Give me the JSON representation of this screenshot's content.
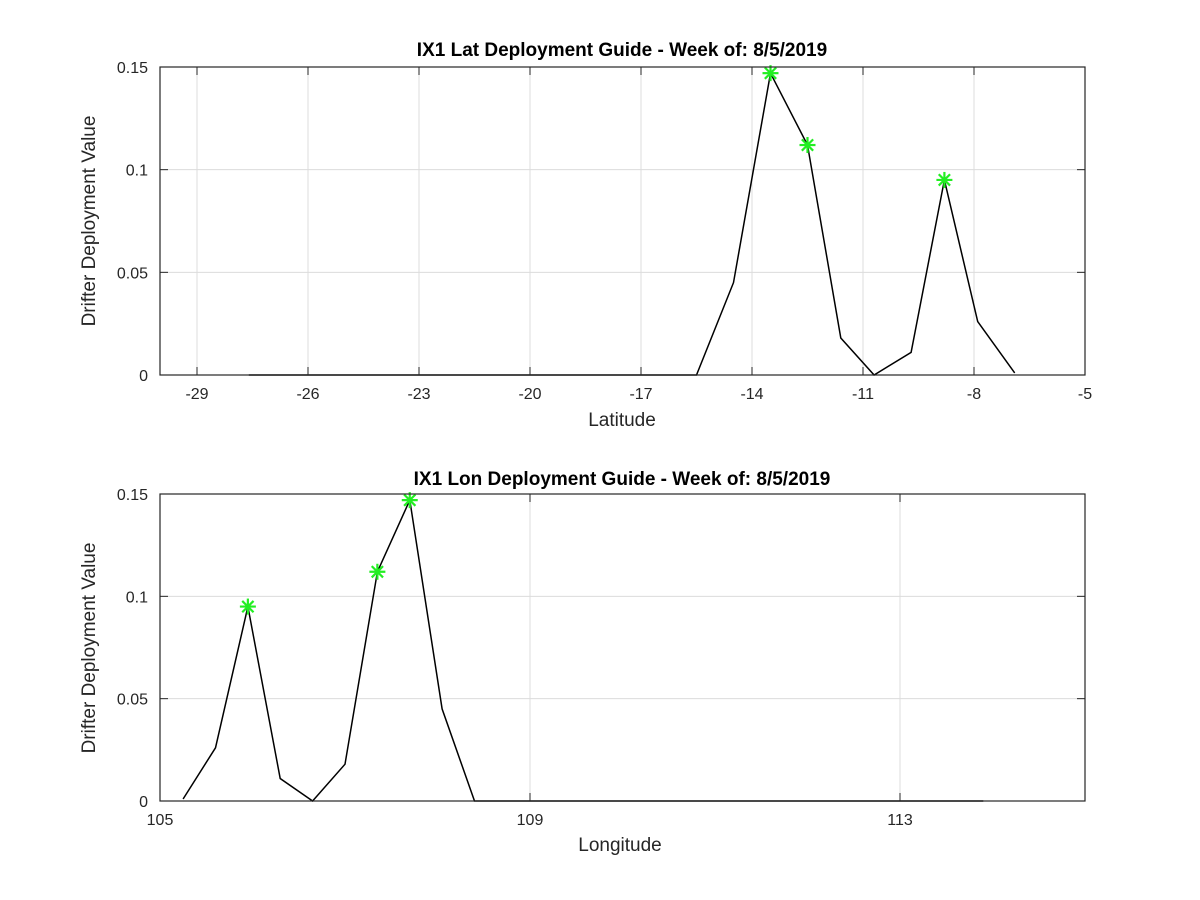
{
  "chart_data": [
    {
      "type": "line",
      "title": "IX1 Lat Deployment Guide - Week of: 8/5/2019",
      "xlabel": "Latitude",
      "ylabel": "Drifter Deployment Value",
      "xlim": [
        -30,
        -5
      ],
      "ylim": [
        0,
        0.15
      ],
      "xticks": [
        -29,
        -26,
        -23,
        -20,
        -17,
        -14,
        -11,
        -8,
        -5
      ],
      "xtick_labels": [
        "-29",
        "-26",
        "-23",
        "-20",
        "-17",
        "-14",
        "-11",
        "-8",
        "-5"
      ],
      "yticks": [
        0,
        0.05,
        0.1,
        0.15
      ],
      "ytick_labels": [
        "0",
        "0.05",
        "0.1",
        "0.15"
      ],
      "grid": true,
      "series": [
        {
          "color": "#000000",
          "x": [
            -27.6,
            -26.6,
            -25.6,
            -24.6,
            -23.6,
            -22.6,
            -21.6,
            -20.6,
            -19.6,
            -18.6,
            -17.6,
            -16.6,
            -15.5,
            -14.5,
            -13.5,
            -12.5,
            -11.6,
            -10.7,
            -9.7,
            -8.8,
            -7.9,
            -6.9
          ],
          "y": [
            0,
            0,
            0,
            0,
            0,
            0,
            0,
            0,
            0,
            0,
            0,
            0,
            0,
            0.045,
            0.147,
            0.112,
            0.018,
            0,
            0.011,
            0.095,
            0.026,
            0.001
          ]
        }
      ],
      "markers": {
        "color": "#22ee22",
        "symbol": "asterisk",
        "x": [
          -13.5,
          -12.5,
          -8.8
        ],
        "y": [
          0.147,
          0.112,
          0.095
        ]
      }
    },
    {
      "type": "line",
      "title": "IX1 Lon Deployment Guide - Week of: 8/5/2019",
      "xlabel": "Longitude",
      "ylabel": "Drifter Deployment Value",
      "xlim": [
        105,
        115
      ],
      "ylim": [
        0,
        0.15
      ],
      "xticks": [
        105,
        109,
        113
      ],
      "xtick_labels": [
        "105",
        "109",
        "113"
      ],
      "yticks": [
        0,
        0.05,
        0.1,
        0.15
      ],
      "ytick_labels": [
        "0",
        "0.05",
        "0.1",
        "0.15"
      ],
      "grid": true,
      "series": [
        {
          "color": "#000000",
          "x": [
            105.25,
            105.6,
            105.95,
            106.3,
            106.65,
            107.0,
            107.35,
            107.7,
            108.05,
            108.4,
            108.75,
            109.1,
            109.5,
            110.0,
            110.5,
            111.0,
            111.5,
            112.0,
            112.5,
            113.0,
            113.5,
            113.9
          ],
          "y": [
            0.001,
            0.026,
            0.095,
            0.011,
            0,
            0.018,
            0.112,
            0.147,
            0.045,
            0,
            0,
            0,
            0,
            0,
            0,
            0,
            0,
            0,
            0,
            0,
            0,
            0
          ]
        }
      ],
      "markers": {
        "color": "#22ee22",
        "symbol": "asterisk",
        "x": [
          105.95,
          107.35,
          107.7
        ],
        "y": [
          0.095,
          0.112,
          0.147
        ]
      }
    }
  ]
}
